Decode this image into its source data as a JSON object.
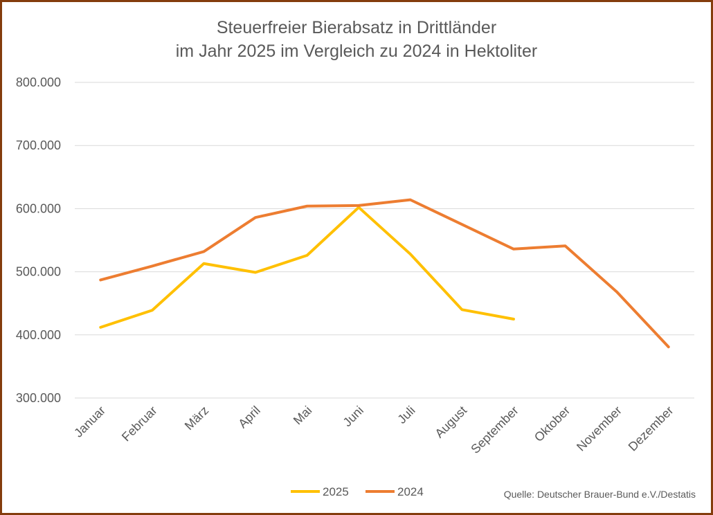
{
  "chart_data": {
    "type": "line",
    "title": [
      "Steuerfreier Bierabsatz in Drittländer",
      "im Jahr 2025 im Vergleich zu 2024 in Hektoliter"
    ],
    "categories": [
      "Januar",
      "Februar",
      "März",
      "April",
      "Mai",
      "Juni",
      "Juli",
      "August",
      "September",
      "Oktober",
      "November",
      "Dezember"
    ],
    "ylim": [
      300000,
      800000
    ],
    "yticks": [
      300000,
      400000,
      500000,
      600000,
      700000,
      800000
    ],
    "ytick_labels": [
      "300.000",
      "400.000",
      "500.000",
      "600.000",
      "700.000",
      "800.000"
    ],
    "grid": true,
    "legend": "bottom",
    "series": [
      {
        "name": "2025",
        "color": "#FFC000",
        "values": [
          412000,
          439000,
          513000,
          499000,
          526000,
          602000,
          528000,
          440000,
          425000,
          null,
          null,
          null
        ]
      },
      {
        "name": "2024",
        "color": "#ED7D31",
        "values": [
          487000,
          509000,
          532000,
          586000,
          604000,
          605000,
          614000,
          575000,
          536000,
          541000,
          468000,
          381000
        ]
      }
    ],
    "source": "Quelle: Deutscher Brauer-Bund e.V./Destatis"
  }
}
